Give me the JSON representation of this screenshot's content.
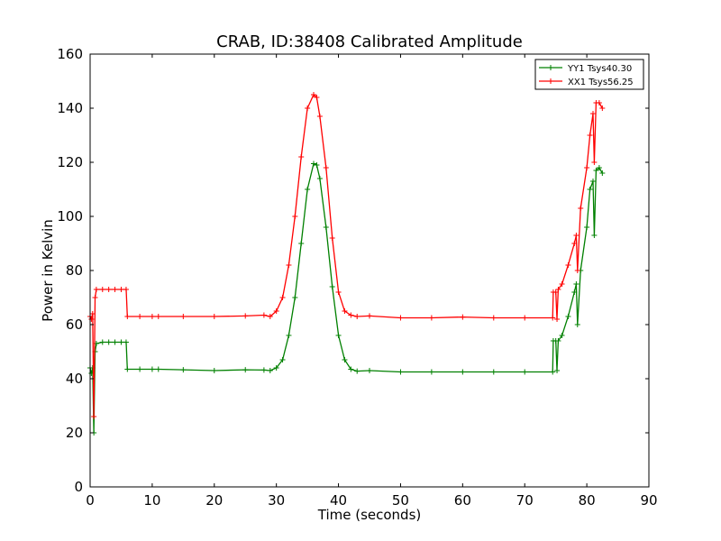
{
  "chart_data": {
    "type": "line",
    "title": "CRAB, ID:38408 Calibrated Amplitude",
    "xlabel": "Time (seconds)",
    "ylabel": "Power in Kelvin",
    "xlim": [
      0,
      90
    ],
    "ylim": [
      0,
      160
    ],
    "xticks": [
      "0",
      "10",
      "20",
      "30",
      "40",
      "50",
      "60",
      "70",
      "80",
      "90"
    ],
    "yticks": [
      "0",
      "20",
      "40",
      "60",
      "80",
      "100",
      "120",
      "140",
      "160"
    ],
    "grid": false,
    "legend_position": "top-right",
    "marker": "plus",
    "series": [
      {
        "name": "YY1 Tsys40.30",
        "color": "#008000",
        "points": [
          [
            0.0,
            44
          ],
          [
            0.2,
            42
          ],
          [
            0.4,
            44
          ],
          [
            0.6,
            20
          ],
          [
            0.8,
            50
          ],
          [
            1.0,
            53
          ],
          [
            2.0,
            53.5
          ],
          [
            3.0,
            53.5
          ],
          [
            4.0,
            53.5
          ],
          [
            5.0,
            53.5
          ],
          [
            5.8,
            53.5
          ],
          [
            6.0,
            43.5
          ],
          [
            8.0,
            43.5
          ],
          [
            10.0,
            43.5
          ],
          [
            11.0,
            43.5
          ],
          [
            15.0,
            43.3
          ],
          [
            20.0,
            43
          ],
          [
            25.0,
            43.3
          ],
          [
            28.0,
            43.2
          ],
          [
            29.0,
            43
          ],
          [
            30.0,
            44
          ],
          [
            31.0,
            47
          ],
          [
            32.0,
            56
          ],
          [
            33.0,
            70
          ],
          [
            34.0,
            90
          ],
          [
            35.0,
            110
          ],
          [
            36.0,
            119.5
          ],
          [
            36.5,
            119
          ],
          [
            37.0,
            114
          ],
          [
            38.0,
            96
          ],
          [
            39.0,
            74
          ],
          [
            40.0,
            56
          ],
          [
            41.0,
            47
          ],
          [
            42.0,
            43.5
          ],
          [
            43.0,
            42.8
          ],
          [
            45.0,
            43
          ],
          [
            50.0,
            42.5
          ],
          [
            55.0,
            42.5
          ],
          [
            60.0,
            42.5
          ],
          [
            65.0,
            42.5
          ],
          [
            70.0,
            42.5
          ],
          [
            74.5,
            42.5
          ],
          [
            74.6,
            54
          ],
          [
            75.0,
            54
          ],
          [
            75.2,
            43
          ],
          [
            75.4,
            54
          ],
          [
            76.0,
            56
          ],
          [
            77.0,
            63
          ],
          [
            78.0,
            72
          ],
          [
            78.3,
            75
          ],
          [
            78.5,
            60
          ],
          [
            79.0,
            80
          ],
          [
            80.0,
            96
          ],
          [
            80.5,
            110
          ],
          [
            81.0,
            113
          ],
          [
            81.2,
            93
          ],
          [
            81.5,
            117
          ],
          [
            82.0,
            118
          ],
          [
            82.5,
            116
          ]
        ]
      },
      {
        "name": "XX1 Tsys56.25",
        "color": "#ff0000",
        "points": [
          [
            0.0,
            63
          ],
          [
            0.2,
            62
          ],
          [
            0.4,
            64
          ],
          [
            0.6,
            26
          ],
          [
            0.8,
            70
          ],
          [
            1.0,
            73
          ],
          [
            2.0,
            73
          ],
          [
            3.0,
            73
          ],
          [
            4.0,
            73
          ],
          [
            5.0,
            73
          ],
          [
            5.8,
            73
          ],
          [
            6.0,
            63
          ],
          [
            8.0,
            63
          ],
          [
            10.0,
            63
          ],
          [
            11.0,
            63
          ],
          [
            15.0,
            63
          ],
          [
            20.0,
            63
          ],
          [
            25.0,
            63.2
          ],
          [
            28.0,
            63.5
          ],
          [
            29.0,
            63
          ],
          [
            30.0,
            65
          ],
          [
            31.0,
            70
          ],
          [
            32.0,
            82
          ],
          [
            33.0,
            100
          ],
          [
            34.0,
            122
          ],
          [
            35.0,
            140
          ],
          [
            36.0,
            145
          ],
          [
            36.5,
            144
          ],
          [
            37.0,
            137
          ],
          [
            38.0,
            118
          ],
          [
            39.0,
            92
          ],
          [
            40.0,
            72
          ],
          [
            41.0,
            65
          ],
          [
            42.0,
            63.5
          ],
          [
            43.0,
            63
          ],
          [
            45.0,
            63.2
          ],
          [
            50.0,
            62.5
          ],
          [
            55.0,
            62.5
          ],
          [
            60.0,
            62.8
          ],
          [
            65.0,
            62.5
          ],
          [
            70.0,
            62.5
          ],
          [
            74.5,
            62.5
          ],
          [
            74.6,
            72
          ],
          [
            75.0,
            72
          ],
          [
            75.2,
            62
          ],
          [
            75.4,
            73
          ],
          [
            76.0,
            75
          ],
          [
            77.0,
            82
          ],
          [
            78.0,
            90
          ],
          [
            78.3,
            93
          ],
          [
            78.5,
            80
          ],
          [
            79.0,
            103
          ],
          [
            80.0,
            118
          ],
          [
            80.5,
            130
          ],
          [
            81.0,
            138
          ],
          [
            81.2,
            120
          ],
          [
            81.5,
            142
          ],
          [
            82.0,
            142
          ],
          [
            82.5,
            140
          ]
        ]
      }
    ]
  }
}
